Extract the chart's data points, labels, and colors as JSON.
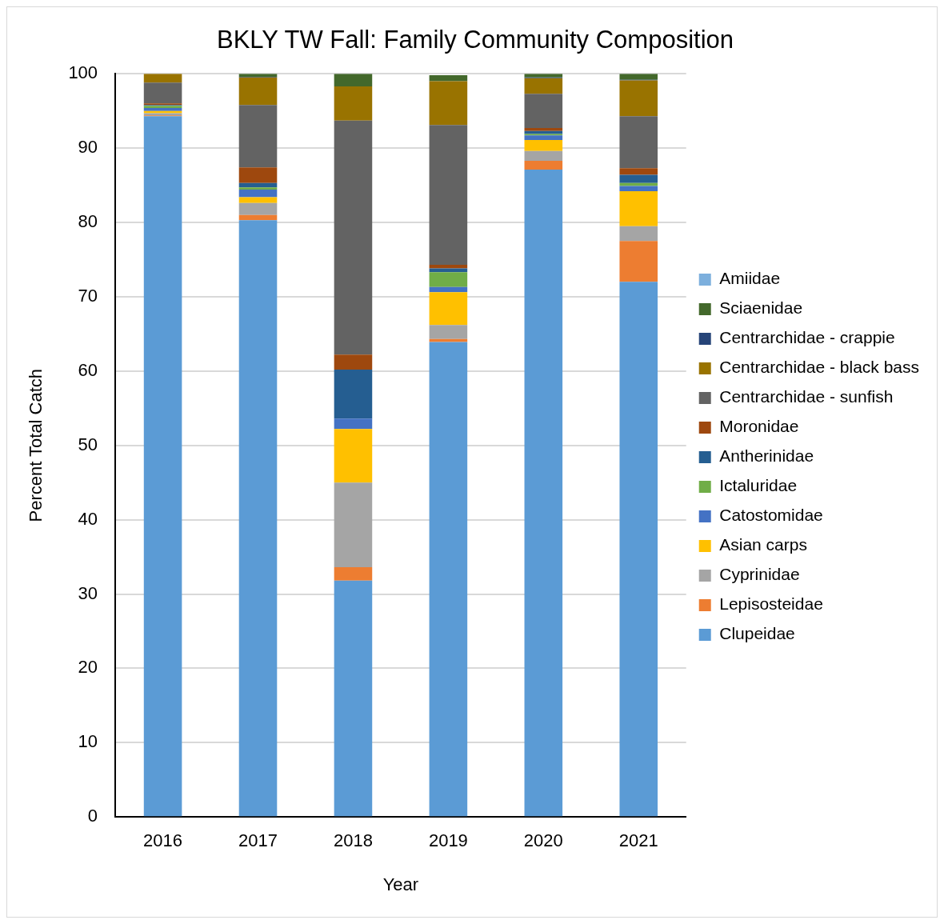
{
  "chart_data": {
    "type": "bar",
    "title": "BKLY TW Fall: Family Community Composition",
    "xlabel": "Year",
    "ylabel": "Percent Total Catch",
    "categories": [
      "2016",
      "2017",
      "2018",
      "2019",
      "2020",
      "2021"
    ],
    "stacked": true,
    "ylim": [
      0,
      100
    ],
    "yticks": [
      0,
      10,
      20,
      30,
      40,
      50,
      60,
      70,
      80,
      90,
      100
    ],
    "grid": "y",
    "legend": "right",
    "series": [
      {
        "name": "Clupeidae",
        "color": "#5b9bd5",
        "values": [
          94.3,
          80.3,
          31.8,
          63.9,
          87.1,
          72.0
        ]
      },
      {
        "name": "Lepisosteidae",
        "color": "#ed7d31",
        "values": [
          0.1,
          0.7,
          1.8,
          0.4,
          1.2,
          5.5
        ]
      },
      {
        "name": "Cyprinidae",
        "color": "#a5a5a5",
        "values": [
          0.3,
          1.6,
          11.4,
          1.9,
          1.3,
          2.0
        ]
      },
      {
        "name": "Asian carps",
        "color": "#ffc000",
        "values": [
          0.3,
          0.8,
          7.2,
          4.4,
          1.5,
          4.7
        ]
      },
      {
        "name": "Catostomidae",
        "color": "#4472c4",
        "values": [
          0.4,
          1.0,
          1.4,
          0.7,
          0.6,
          0.7
        ]
      },
      {
        "name": "Ictaluridae",
        "color": "#70ad47",
        "values": [
          0.3,
          0.3,
          0,
          2.0,
          0.2,
          0.4
        ]
      },
      {
        "name": "Antherinidae",
        "color": "#255e91",
        "values": [
          0.1,
          0.6,
          6.6,
          0.5,
          0.4,
          1.1
        ]
      },
      {
        "name": "Moronidae",
        "color": "#9e480e",
        "values": [
          0.2,
          2.1,
          2.0,
          0.5,
          0.4,
          0.9
        ]
      },
      {
        "name": "Centrarchidae - sunfish",
        "color": "#636363",
        "values": [
          2.8,
          8.4,
          31.5,
          18.8,
          4.6,
          7.0
        ]
      },
      {
        "name": "Centrarchidae - black bass",
        "color": "#997300",
        "values": [
          1.2,
          3.7,
          4.6,
          5.9,
          2.1,
          4.8
        ]
      },
      {
        "name": "Centrarchidae - crappie",
        "color": "#264478",
        "values": [
          0,
          0.1,
          0,
          null,
          0.1,
          0.1
        ]
      },
      {
        "name": "Sciaenidae",
        "color": "#43682b",
        "values": [
          0,
          0.4,
          1.7,
          0.8,
          0.5,
          0.8
        ]
      },
      {
        "name": "Amiidae",
        "color": "#7cafdd",
        "values": [
          0,
          0,
          0,
          0,
          0,
          0
        ]
      }
    ]
  }
}
